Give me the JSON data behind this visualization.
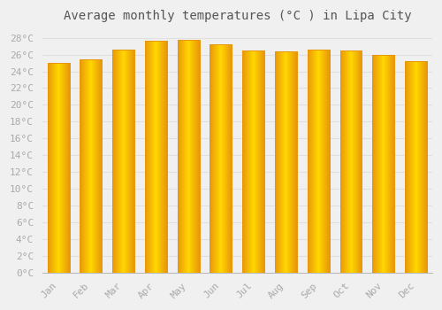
{
  "title": "Average monthly temperatures (°C ) in Lipa City",
  "months": [
    "Jan",
    "Feb",
    "Mar",
    "Apr",
    "May",
    "Jun",
    "Jul",
    "Aug",
    "Sep",
    "Oct",
    "Nov",
    "Dec"
  ],
  "temperatures": [
    25.0,
    25.4,
    26.6,
    27.6,
    27.8,
    27.2,
    26.5,
    26.4,
    26.6,
    26.5,
    26.0,
    25.2
  ],
  "bar_color_center": "#FFD700",
  "bar_color_edge": "#E8960A",
  "background_color": "#f0f0f0",
  "grid_color": "#e0e0e0",
  "ylim": [
    0,
    29
  ],
  "ytick_step": 2,
  "title_fontsize": 10,
  "tick_fontsize": 8,
  "tick_color": "#aaaaaa",
  "title_color": "#555555"
}
